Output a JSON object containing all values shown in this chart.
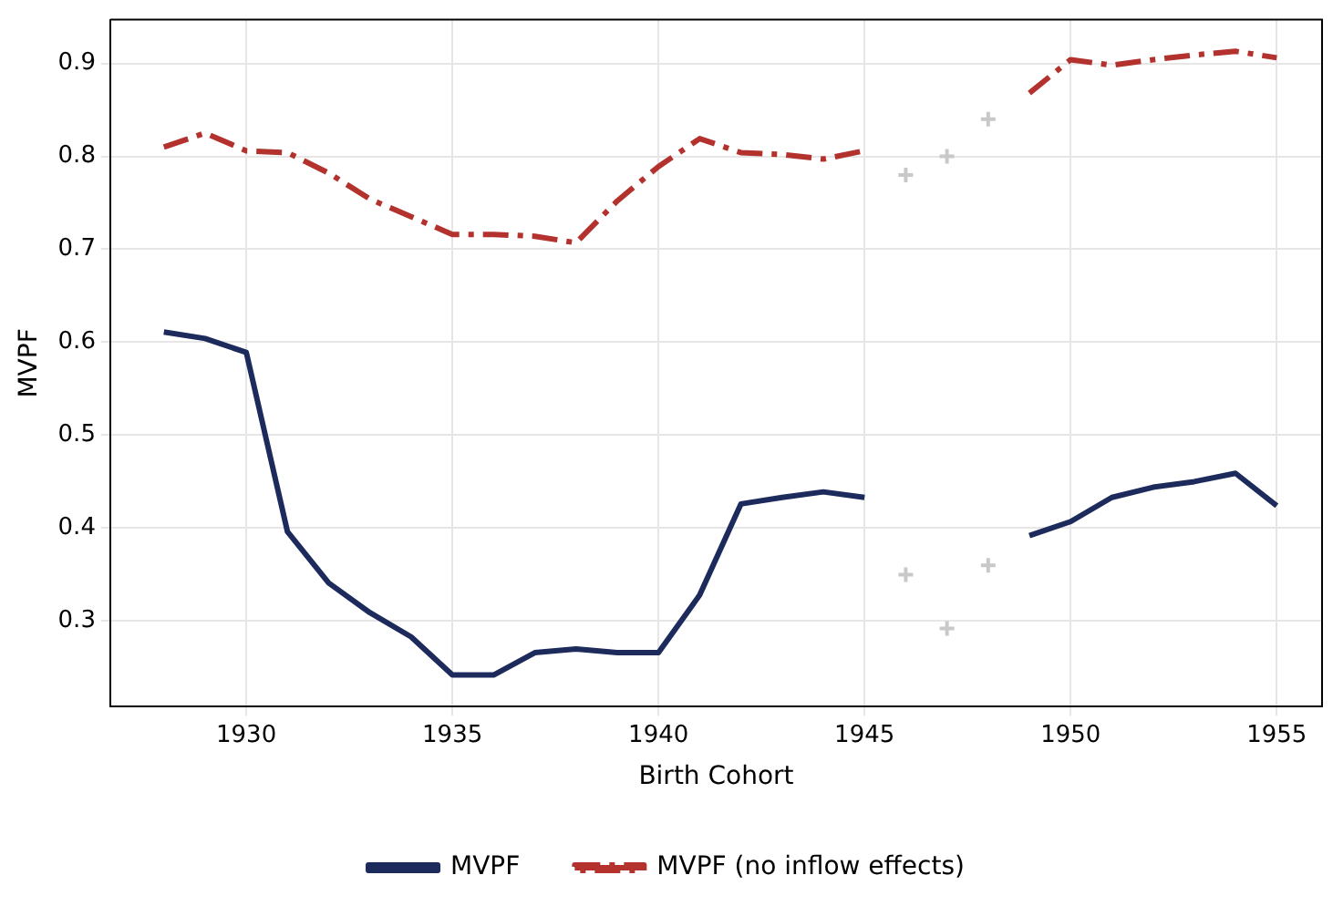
{
  "chart_data": {
    "type": "line",
    "xlabel": "Birth Cohort",
    "ylabel": "MVPF",
    "x": [
      1928,
      1929,
      1930,
      1931,
      1932,
      1933,
      1934,
      1935,
      1936,
      1937,
      1938,
      1939,
      1940,
      1941,
      1942,
      1943,
      1944,
      1945,
      1946,
      1947,
      1948,
      1949,
      1950,
      1951,
      1952,
      1953,
      1954,
      1955
    ],
    "series": [
      {
        "name": "MVPF",
        "color": "#1c2a5c",
        "line_style": "solid",
        "values": [
          0.611,
          0.604,
          0.589,
          0.396,
          0.341,
          0.309,
          0.283,
          0.242,
          0.242,
          0.266,
          0.27,
          0.266,
          0.266,
          0.328,
          0.426,
          0.433,
          0.439,
          0.433,
          null,
          null,
          null,
          0.392,
          0.407,
          0.433,
          0.444,
          0.45,
          0.459,
          0.424
        ]
      },
      {
        "name": "MVPF (no inflow effects)",
        "color": "#b3322e",
        "line_style": "dashed",
        "values": [
          0.81,
          0.825,
          0.806,
          0.804,
          0.782,
          0.754,
          0.735,
          0.716,
          0.716,
          0.714,
          0.707,
          0.752,
          0.789,
          0.819,
          0.804,
          0.802,
          0.797,
          0.806,
          null,
          null,
          null,
          0.868,
          0.904,
          0.898,
          0.904,
          0.909,
          0.913,
          0.906
        ]
      },
      {
        "type": "scatter",
        "color": "#c8c8c8",
        "marker": "cross",
        "x": [
          1946,
          1947,
          1948
        ],
        "values": [
          0.35,
          0.292,
          0.36
        ]
      },
      {
        "type": "scatter",
        "color": "#c8c8c8",
        "marker": "cross",
        "x": [
          1946,
          1947,
          1948
        ],
        "values": [
          0.78,
          0.8,
          0.84
        ]
      }
    ],
    "xlim": [
      1926.7,
      1956.1
    ],
    "xticks": [
      1930,
      1935,
      1940,
      1945,
      1950,
      1955
    ],
    "ylim": [
      0.208,
      0.947
    ],
    "yticks": [
      0.3,
      0.4,
      0.5,
      0.6,
      0.7,
      0.8,
      0.9
    ],
    "grid": true,
    "legend": "bottom"
  }
}
